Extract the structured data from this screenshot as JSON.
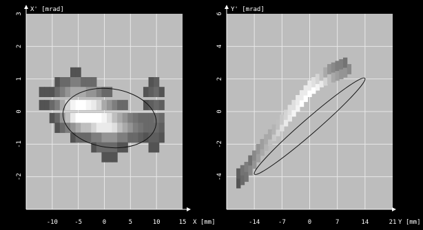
{
  "chart_data": [
    {
      "type": "heatmap",
      "ylabel": "X' [mrad]",
      "xlabel": "X [mm]",
      "xlim": [
        -15,
        15
      ],
      "ylim": [
        -3,
        3
      ],
      "xticks": [
        -10,
        -5,
        0,
        5,
        10,
        15
      ],
      "yticks": [
        3,
        2,
        1,
        0,
        -1,
        -2
      ],
      "background": "#bdbdbd",
      "grid": true,
      "envelope": {
        "cx": 1,
        "cy": -0.2,
        "a": 9,
        "b": 0.9,
        "angle_deg": -8
      },
      "cells": [
        [
          -12,
          0.6,
          0.2
        ],
        [
          -11,
          0.6,
          0.2
        ],
        [
          -11,
          0.2,
          0.2
        ],
        [
          -12,
          0.2,
          0.2
        ],
        [
          -10,
          0.6,
          0.2
        ],
        [
          -10,
          0.2,
          0.3
        ],
        [
          -10,
          -0.2,
          0.2
        ],
        [
          -9,
          0.9,
          0.2
        ],
        [
          -9,
          0.6,
          0.3
        ],
        [
          -9,
          0.2,
          0.4
        ],
        [
          -9,
          -0.2,
          0.3
        ],
        [
          -9,
          -0.5,
          0.2
        ],
        [
          -8,
          0.9,
          0.3
        ],
        [
          -8,
          0.6,
          0.4
        ],
        [
          -8,
          0.2,
          0.6
        ],
        [
          -8,
          -0.2,
          0.5
        ],
        [
          -8,
          -0.5,
          0.3
        ],
        [
          -7,
          0.9,
          0.3
        ],
        [
          -7,
          0.6,
          0.5
        ],
        [
          -7,
          0.2,
          0.8
        ],
        [
          -7,
          -0.2,
          0.7
        ],
        [
          -7,
          -0.5,
          0.4
        ],
        [
          -6,
          1.2,
          0.2
        ],
        [
          -6,
          0.9,
          0.4
        ],
        [
          -6,
          0.6,
          0.6
        ],
        [
          -6,
          0.2,
          0.95
        ],
        [
          -6,
          -0.2,
          0.9
        ],
        [
          -6,
          -0.5,
          0.5
        ],
        [
          -6,
          -0.8,
          0.2
        ],
        [
          -5,
          1.2,
          0.2
        ],
        [
          -5,
          0.9,
          0.4
        ],
        [
          -5,
          0.6,
          0.6
        ],
        [
          -5,
          0.2,
          1.0
        ],
        [
          -5,
          -0.2,
          1.0
        ],
        [
          -5,
          -0.5,
          0.6
        ],
        [
          -5,
          -0.8,
          0.3
        ],
        [
          -4,
          0.9,
          0.3
        ],
        [
          -4,
          0.6,
          0.6
        ],
        [
          -4,
          0.2,
          1.0
        ],
        [
          -4,
          -0.2,
          1.0
        ],
        [
          -4,
          -0.5,
          0.7
        ],
        [
          -4,
          -0.8,
          0.3
        ],
        [
          -3,
          0.9,
          0.3
        ],
        [
          -3,
          0.6,
          0.5
        ],
        [
          -3,
          0.2,
          0.95
        ],
        [
          -3,
          -0.2,
          1.0
        ],
        [
          -3,
          -0.5,
          0.7
        ],
        [
          -3,
          -0.8,
          0.3
        ],
        [
          -2,
          0.9,
          0.3
        ],
        [
          -2,
          0.6,
          0.5
        ],
        [
          -2,
          0.2,
          0.9
        ],
        [
          -2,
          -0.2,
          1.0
        ],
        [
          -2,
          -0.5,
          0.8
        ],
        [
          -2,
          -0.8,
          0.4
        ],
        [
          -2,
          -1.1,
          0.2
        ],
        [
          -1,
          0.6,
          0.4
        ],
        [
          -1,
          0.2,
          0.8
        ],
        [
          -1,
          -0.2,
          1.0
        ],
        [
          -1,
          -0.5,
          0.9
        ],
        [
          -1,
          -0.8,
          0.4
        ],
        [
          -1,
          -1.1,
          0.3
        ],
        [
          0,
          0.6,
          0.3
        ],
        [
          0,
          0.2,
          0.6
        ],
        [
          0,
          -0.2,
          0.95
        ],
        [
          0,
          -0.5,
          0.9
        ],
        [
          0,
          -0.8,
          0.5
        ],
        [
          0,
          -1.1,
          0.3
        ],
        [
          0,
          -1.4,
          0.2
        ],
        [
          1,
          0.6,
          0.3
        ],
        [
          1,
          0.2,
          0.5
        ],
        [
          1,
          -0.2,
          0.85
        ],
        [
          1,
          -0.5,
          0.9
        ],
        [
          1,
          -0.8,
          0.5
        ],
        [
          1,
          -1.1,
          0.3
        ],
        [
          1,
          -1.4,
          0.2
        ],
        [
          2,
          0.2,
          0.4
        ],
        [
          2,
          -0.2,
          0.7
        ],
        [
          2,
          -0.5,
          0.85
        ],
        [
          2,
          -0.8,
          0.5
        ],
        [
          2,
          -1.1,
          0.3
        ],
        [
          2,
          -1.4,
          0.2
        ],
        [
          3,
          0.2,
          0.3
        ],
        [
          3,
          -0.2,
          0.6
        ],
        [
          3,
          -0.5,
          0.7
        ],
        [
          3,
          -0.8,
          0.4
        ],
        [
          3,
          -1.1,
          0.2
        ],
        [
          4,
          0.2,
          0.3
        ],
        [
          4,
          -0.2,
          0.5
        ],
        [
          4,
          -0.5,
          0.6
        ],
        [
          4,
          -0.8,
          0.4
        ],
        [
          4,
          -1.1,
          0.2
        ],
        [
          5,
          -0.2,
          0.4
        ],
        [
          5,
          -0.5,
          0.5
        ],
        [
          5,
          -0.8,
          0.3
        ],
        [
          6,
          -0.2,
          0.35
        ],
        [
          6,
          -0.5,
          0.4
        ],
        [
          6,
          -0.8,
          0.3
        ],
        [
          7,
          -0.2,
          0.3
        ],
        [
          7,
          -0.5,
          0.35
        ],
        [
          7,
          -0.8,
          0.25
        ],
        [
          8,
          0.6,
          0.2
        ],
        [
          8,
          0.2,
          0.2
        ],
        [
          8,
          -0.2,
          0.3
        ],
        [
          8,
          -0.5,
          0.3
        ],
        [
          8,
          -0.8,
          0.2
        ],
        [
          9,
          0.9,
          0.2
        ],
        [
          9,
          0.6,
          0.25
        ],
        [
          9,
          0.2,
          0.25
        ],
        [
          9,
          -0.2,
          0.3
        ],
        [
          9,
          -0.5,
          0.3
        ],
        [
          9,
          -0.8,
          0.25
        ],
        [
          9,
          -1.1,
          0.2
        ],
        [
          10,
          0.9,
          0.25
        ],
        [
          10,
          0.6,
          0.3
        ],
        [
          10,
          0.2,
          0.3
        ],
        [
          10,
          -0.2,
          0.35
        ],
        [
          10,
          -0.5,
          0.3
        ],
        [
          10,
          -0.8,
          0.25
        ],
        [
          10,
          -1.1,
          0.2
        ],
        [
          11,
          0.6,
          0.2
        ],
        [
          11,
          0.2,
          0.25
        ],
        [
          11,
          -0.2,
          0.3
        ],
        [
          11,
          -0.5,
          0.25
        ],
        [
          11,
          -0.8,
          0.2
        ]
      ]
    },
    {
      "type": "heatmap",
      "ylabel": "Y' [mrad]",
      "xlabel": "Y [mm]",
      "xlim": [
        -21,
        21
      ],
      "ylim": [
        -6,
        6
      ],
      "xticks": [
        -14,
        -7,
        0,
        7,
        14,
        21
      ],
      "yticks": [
        6,
        4,
        2,
        0,
        -2,
        -4
      ],
      "background": "#bdbdbd",
      "grid": true,
      "envelope": {
        "cx": 0,
        "cy": -0.9,
        "a": 18.5,
        "b": 0.45,
        "angle_deg": 41
      },
      "cells": [
        [
          -18,
          -4.4,
          0.2
        ],
        [
          -18,
          -3.8,
          0.25
        ],
        [
          -17,
          -4.2,
          0.3
        ],
        [
          -17,
          -3.6,
          0.35
        ],
        [
          -16,
          -4.0,
          0.35
        ],
        [
          -16,
          -3.4,
          0.4
        ],
        [
          -15,
          -3.6,
          0.45
        ],
        [
          -15,
          -3.0,
          0.35
        ],
        [
          -14,
          -3.2,
          0.5
        ],
        [
          -14,
          -2.7,
          0.45
        ],
        [
          -13,
          -2.8,
          0.55
        ],
        [
          -13,
          -2.3,
          0.5
        ],
        [
          -12,
          -2.4,
          0.6
        ],
        [
          -12,
          -2.0,
          0.55
        ],
        [
          -11,
          -2.1,
          0.65
        ],
        [
          -11,
          -1.7,
          0.6
        ],
        [
          -10,
          -1.8,
          0.7
        ],
        [
          -10,
          -1.4,
          0.6
        ],
        [
          -9,
          -1.5,
          0.75
        ],
        [
          -9,
          -1.1,
          0.65
        ],
        [
          -8,
          -1.2,
          0.8
        ],
        [
          -8,
          -0.8,
          0.7
        ],
        [
          -7,
          -0.9,
          0.85
        ],
        [
          -7,
          -0.5,
          0.75
        ],
        [
          -6,
          -0.6,
          0.9
        ],
        [
          -6,
          -0.2,
          0.8
        ],
        [
          -5,
          -0.3,
          0.9
        ],
        [
          -5,
          0.1,
          0.85
        ],
        [
          -4,
          0.0,
          0.95
        ],
        [
          -4,
          0.4,
          0.85
        ],
        [
          -3,
          0.3,
          0.95
        ],
        [
          -3,
          0.7,
          0.9
        ],
        [
          -2,
          0.6,
          1.0
        ],
        [
          -2,
          1.0,
          0.9
        ],
        [
          -1,
          0.9,
          1.0
        ],
        [
          -1,
          1.3,
          0.9
        ],
        [
          0,
          1.2,
          1.0
        ],
        [
          0,
          1.6,
          0.9
        ],
        [
          1,
          1.4,
          1.0
        ],
        [
          1,
          1.8,
          0.85
        ],
        [
          2,
          1.6,
          0.95
        ],
        [
          2,
          2.0,
          0.8
        ],
        [
          3,
          1.8,
          0.9
        ],
        [
          3,
          2.2,
          0.7
        ],
        [
          4,
          1.9,
          0.8
        ],
        [
          4,
          2.4,
          0.6
        ],
        [
          5,
          2.0,
          0.7
        ],
        [
          5,
          2.6,
          0.5
        ],
        [
          6,
          2.1,
          0.6
        ],
        [
          6,
          2.7,
          0.45
        ],
        [
          7,
          2.2,
          0.55
        ],
        [
          7,
          2.8,
          0.4
        ],
        [
          8,
          2.3,
          0.5
        ],
        [
          8,
          2.9,
          0.4
        ],
        [
          9,
          2.4,
          0.5
        ],
        [
          9,
          3.0,
          0.35
        ],
        [
          10,
          2.6,
          0.45
        ]
      ]
    }
  ]
}
